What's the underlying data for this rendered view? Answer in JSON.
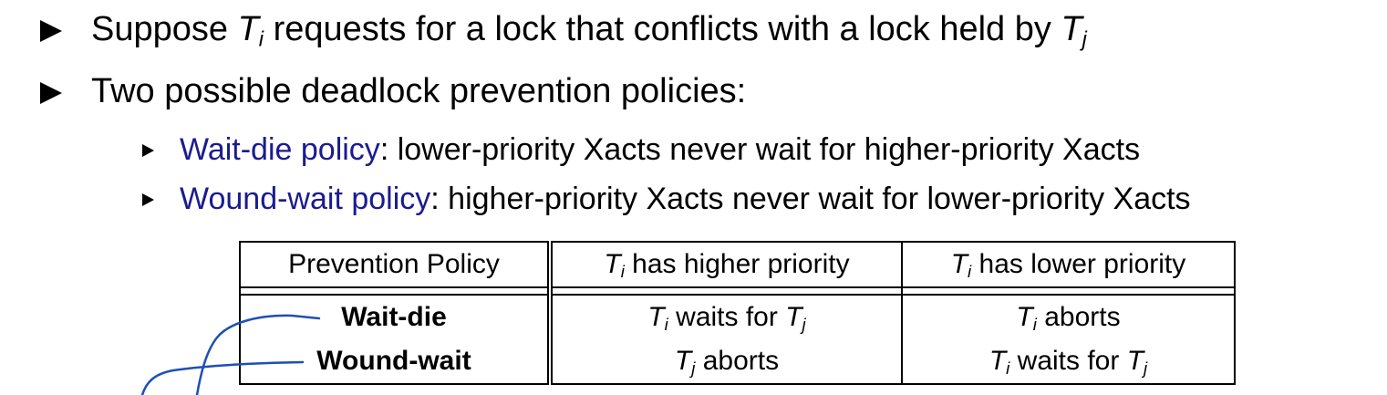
{
  "bullets": [
    {
      "parts": [
        "Suppose ",
        "T",
        "i",
        " requests for a lock that conflicts with a lock held by ",
        "T",
        "j"
      ]
    },
    {
      "text": "Two possible deadlock prevention policies:"
    }
  ],
  "sub_bullets": [
    {
      "term": "Wait-die policy",
      "rest": ": lower-priority Xacts never wait for higher-priority Xacts"
    },
    {
      "term": "Wound-wait policy",
      "rest": ": higher-priority Xacts never wait for lower-priority Xacts"
    }
  ],
  "table": {
    "header": {
      "col1": "Prevention Policy",
      "col2_var": "T",
      "col2_sub": "i",
      "col2_rest": " has higher priority",
      "col3_var": "T",
      "col3_sub": "i",
      "col3_rest": " has lower priority"
    },
    "rows": [
      {
        "policy": "Wait-die",
        "higher": {
          "v1": "T",
          "s1": "i",
          "mid": " waits for ",
          "v2": "T",
          "s2": "j"
        },
        "lower": {
          "v1": "T",
          "s1": "i",
          "mid": " aborts"
        }
      },
      {
        "policy": "Wound-wait",
        "higher": {
          "v1": "T",
          "s1": "j",
          "mid": " aborts"
        },
        "lower": {
          "v1": "T",
          "s1": "i",
          "mid": " waits for ",
          "v2": "T",
          "s2": "j"
        }
      }
    ]
  },
  "colors": {
    "term": "#1b1b8f",
    "annotation": "#1f4fb4"
  }
}
